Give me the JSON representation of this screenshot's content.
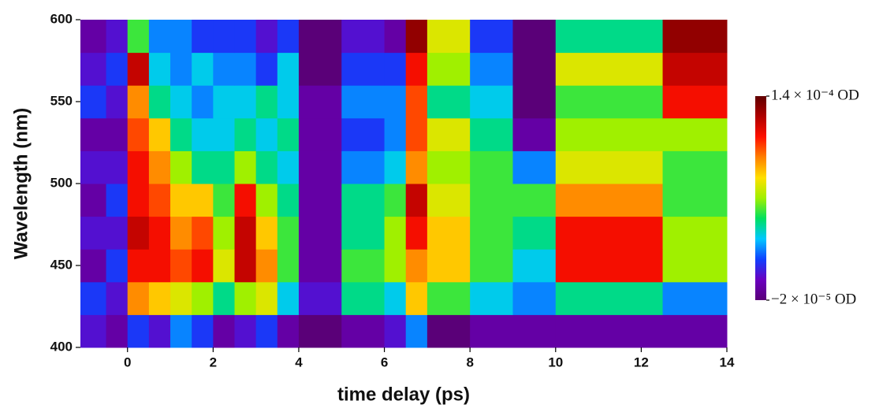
{
  "chart_data": {
    "type": "heatmap",
    "xlabel": "time delay (ps)",
    "ylabel": "Wavelength (nm)",
    "xbins": [
      -1.1,
      -0.5,
      0,
      0.5,
      1,
      1.5,
      2,
      2.5,
      3,
      3.5,
      4,
      5,
      6,
      6.5,
      7,
      8,
      9,
      10,
      12.5,
      14
    ],
    "ybins": [
      400,
      420,
      440,
      460,
      480,
      500,
      520,
      540,
      560,
      580,
      600
    ],
    "z": [
      [
        0.0,
        -1e-05,
        1e-05,
        0.0,
        2e-05,
        1e-05,
        -1e-05,
        0.0,
        1e-05,
        -1e-05,
        -2e-05,
        -1e-05,
        0.0,
        2e-05,
        -2e-05,
        -1e-05,
        -1e-05,
        -1e-05,
        -1e-05
      ],
      [
        1e-05,
        0.0,
        9e-05,
        8e-05,
        7e-05,
        6e-05,
        4e-05,
        6e-05,
        7e-05,
        3e-05,
        0.0,
        4e-05,
        3e-05,
        8e-05,
        5e-05,
        3e-05,
        2e-05,
        4e-05,
        2e-05
      ],
      [
        -1e-05,
        1e-05,
        0.00011,
        0.00011,
        0.0001,
        0.00011,
        7e-05,
        0.00012,
        9e-05,
        5e-05,
        -1e-05,
        5e-05,
        6e-05,
        9e-05,
        8e-05,
        5e-05,
        3e-05,
        0.00011,
        6e-05
      ],
      [
        0.0,
        0.0,
        0.00012,
        0.00011,
        9e-05,
        0.0001,
        6e-05,
        0.00012,
        8e-05,
        5e-05,
        -1e-05,
        4e-05,
        6e-05,
        0.00011,
        8e-05,
        5e-05,
        4e-05,
        0.00011,
        6e-05
      ],
      [
        -1e-05,
        1e-05,
        0.00011,
        0.0001,
        8e-05,
        8e-05,
        5e-05,
        0.00011,
        6e-05,
        4e-05,
        -1e-05,
        4e-05,
        5e-05,
        0.00012,
        7e-05,
        5e-05,
        5e-05,
        9e-05,
        5e-05
      ],
      [
        0.0,
        0.0,
        0.00011,
        9e-05,
        6e-05,
        4e-05,
        4e-05,
        6e-05,
        4e-05,
        3e-05,
        -1e-05,
        2e-05,
        3e-05,
        9e-05,
        6e-05,
        5e-05,
        2e-05,
        7e-05,
        5e-05
      ],
      [
        -1e-05,
        -1e-05,
        0.0001,
        8e-05,
        4e-05,
        3e-05,
        3e-05,
        4e-05,
        3e-05,
        4e-05,
        -1e-05,
        1e-05,
        2e-05,
        0.0001,
        7e-05,
        4e-05,
        -1e-05,
        6e-05,
        6e-05
      ],
      [
        1e-05,
        0.0,
        9e-05,
        4e-05,
        3e-05,
        2e-05,
        3e-05,
        3e-05,
        4e-05,
        3e-05,
        -1e-05,
        2e-05,
        2e-05,
        0.0001,
        4e-05,
        3e-05,
        -2e-05,
        5e-05,
        0.00011
      ],
      [
        0.0,
        1e-05,
        0.00012,
        3e-05,
        2e-05,
        3e-05,
        2e-05,
        2e-05,
        1e-05,
        3e-05,
        -2e-05,
        1e-05,
        1e-05,
        0.00011,
        6e-05,
        2e-05,
        -2e-05,
        7e-05,
        0.00012
      ],
      [
        -1e-05,
        0.0,
        5e-05,
        2e-05,
        2e-05,
        1e-05,
        1e-05,
        1e-05,
        0.0,
        1e-05,
        -2e-05,
        0.0,
        -1e-05,
        0.00013,
        7e-05,
        1e-05,
        -2e-05,
        4e-05,
        0.00013
      ]
    ],
    "xlim": [
      -1.1,
      14
    ],
    "xticks": [
      0,
      2,
      4,
      6,
      8,
      10,
      12,
      14
    ],
    "ylim": [
      400,
      600
    ],
    "yticks": [
      400,
      450,
      500,
      550,
      600
    ],
    "zlim": [
      -2e-05,
      0.00014
    ],
    "zticks": [
      {
        "value": 0.00014,
        "label": "1.4 × 10⁻⁴ OD"
      },
      {
        "value": -2e-05,
        "label": "−2 × 10⁻⁵ OD"
      }
    ],
    "colormap": [
      "#5a0078",
      "#6a00c0",
      "#1040ff",
      "#00c8ff",
      "#00e060",
      "#a0f000",
      "#ffe000",
      "#ff8000",
      "#ff1000",
      "#b00000",
      "#600000"
    ]
  }
}
